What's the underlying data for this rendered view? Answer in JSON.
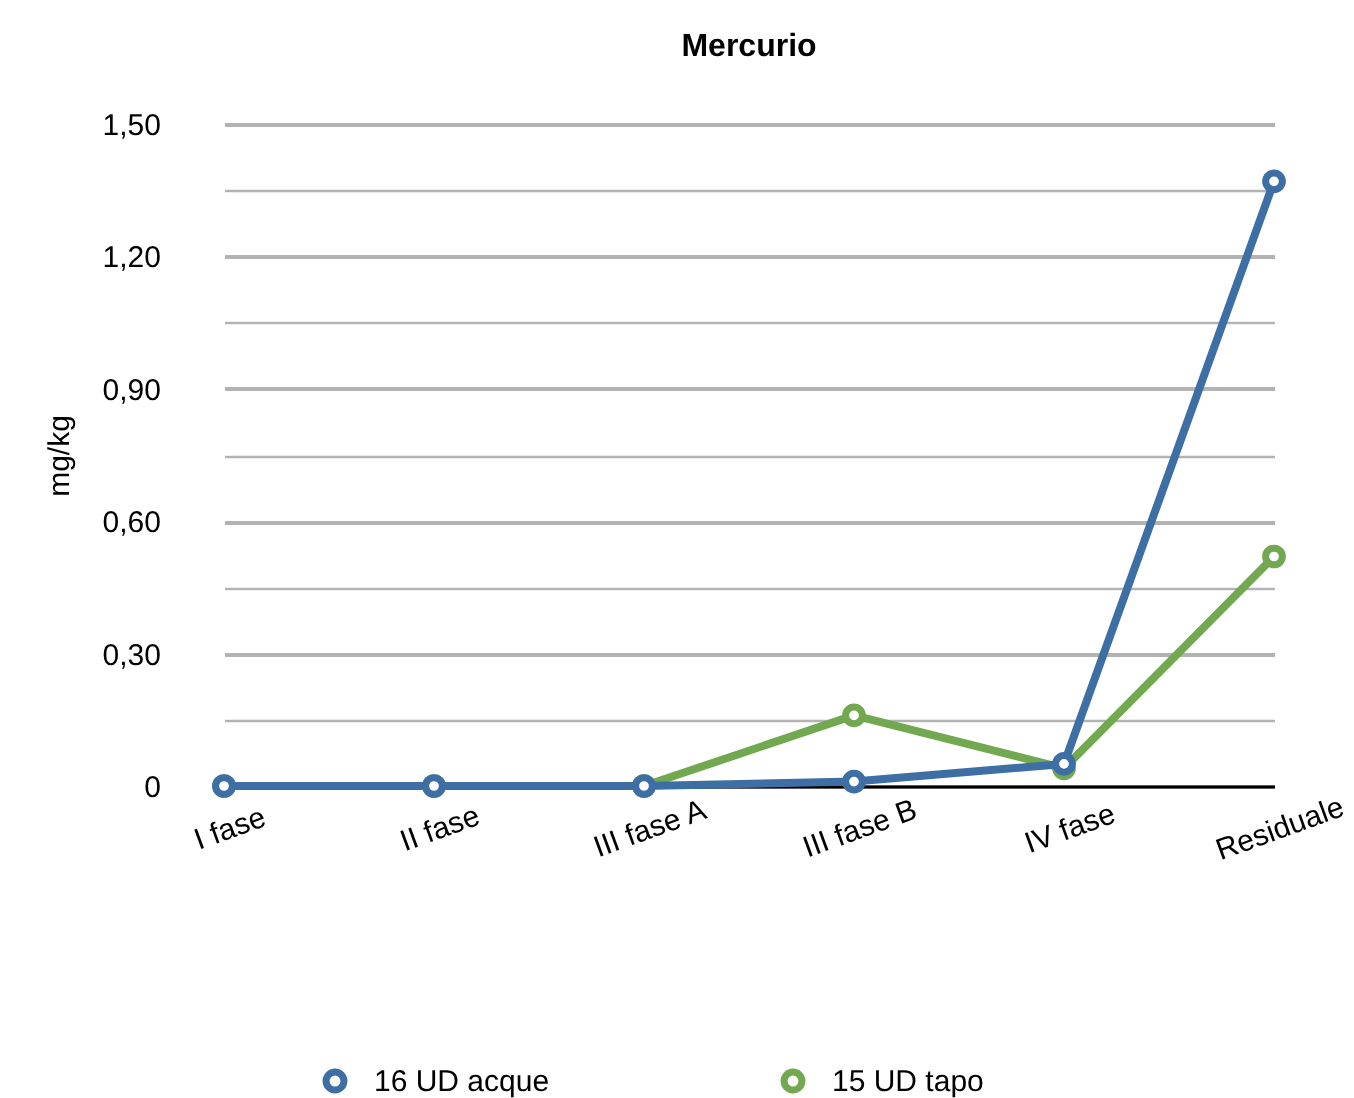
{
  "chart_data": {
    "type": "line",
    "title": "Mercurio",
    "ylabel": "mg/kg",
    "categories": [
      "I fase",
      "II fase",
      "III fase A",
      "III fase B",
      "IV fase",
      "Residuale"
    ],
    "series": [
      {
        "name": "16 UD acque",
        "color": "#3d6fa4",
        "values": [
          0,
          0,
          0,
          0.01,
          0.05,
          1.37
        ]
      },
      {
        "name": "15 UD tapo",
        "color": "#72a84f",
        "values": [
          0,
          0,
          0,
          0.16,
          0.04,
          0.52
        ]
      }
    ],
    "ylim": [
      0,
      1.5
    ],
    "yticks": [
      0,
      {
        "value": 0.15,
        "label": null
      },
      {
        "value": 0.3,
        "label": "0,30"
      },
      {
        "value": 0.45,
        "label": null
      },
      {
        "value": 0.6,
        "label": "0,60"
      },
      {
        "value": 0.75,
        "label": null
      },
      {
        "value": 0.9,
        "label": "0,90"
      },
      {
        "value": 1.05,
        "label": null
      },
      {
        "value": 1.2,
        "label": "1,20"
      },
      {
        "value": 1.35,
        "label": null
      },
      {
        "value": 1.5,
        "label": "1,50"
      }
    ],
    "grid": "y",
    "legend": "bottom",
    "marker": "circle",
    "line_style": "solid"
  }
}
